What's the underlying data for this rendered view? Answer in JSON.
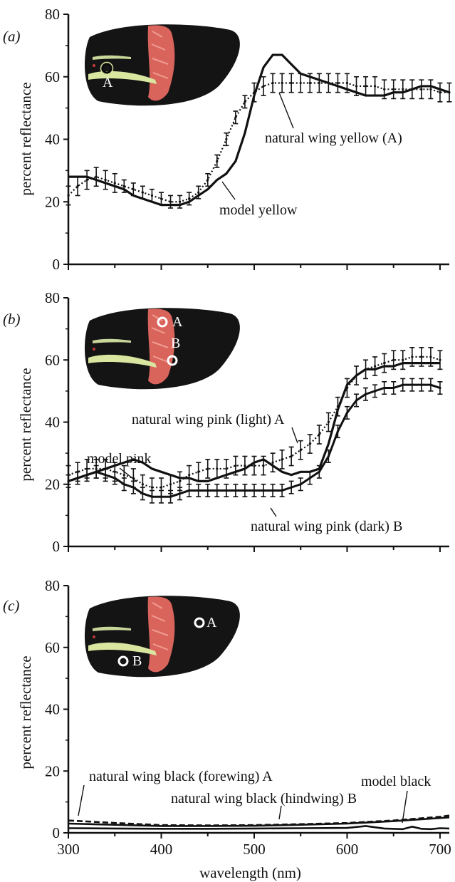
{
  "chart_data": [
    {
      "panel": "(a)",
      "type": "line",
      "ylabel": "percent reflectance",
      "ylim": [
        0,
        80
      ],
      "yticks": [
        "0",
        "20",
        "40",
        "60",
        "80"
      ],
      "xlim": [
        300,
        710
      ],
      "series": [
        {
          "name": "natural wing yellow (A)",
          "style": "dotted-errorbars",
          "x": [
            300,
            310,
            320,
            330,
            340,
            350,
            360,
            370,
            380,
            390,
            400,
            410,
            420,
            430,
            440,
            450,
            460,
            470,
            480,
            490,
            500,
            510,
            520,
            530,
            540,
            550,
            560,
            570,
            580,
            590,
            600,
            610,
            620,
            630,
            640,
            650,
            660,
            670,
            680,
            690,
            700,
            710
          ],
          "y": [
            22,
            25,
            27,
            28,
            27,
            26,
            25,
            24,
            23,
            22,
            21,
            20,
            20,
            21,
            23,
            27,
            33,
            40,
            47,
            52,
            55,
            57,
            58,
            58,
            58,
            58,
            58,
            58,
            58,
            58,
            58,
            57,
            57,
            57,
            56,
            56,
            56,
            56,
            56,
            56,
            55,
            55
          ],
          "err": [
            3,
            3,
            3,
            3,
            3,
            3,
            2,
            2,
            2,
            2,
            2,
            2,
            2,
            2,
            2,
            2,
            2,
            2,
            2,
            2,
            3,
            3,
            3,
            3,
            3,
            3,
            3,
            3,
            3,
            3,
            3,
            3,
            3,
            3,
            3,
            3,
            3,
            3,
            3,
            3,
            3,
            3
          ]
        },
        {
          "name": "model yellow",
          "style": "solid",
          "x": [
            300,
            310,
            320,
            330,
            340,
            350,
            360,
            370,
            380,
            390,
            400,
            410,
            420,
            430,
            440,
            450,
            460,
            470,
            480,
            490,
            500,
            510,
            520,
            530,
            540,
            550,
            560,
            570,
            580,
            590,
            600,
            610,
            620,
            630,
            640,
            650,
            660,
            670,
            680,
            690,
            700,
            710
          ],
          "y": [
            28,
            28,
            28,
            27,
            26,
            25,
            24,
            22,
            21,
            20,
            19,
            19,
            19,
            20,
            22,
            24,
            27,
            29,
            33,
            42,
            54,
            63,
            67,
            67,
            64,
            61,
            60,
            59,
            58,
            57,
            56,
            55,
            54,
            54,
            54,
            55,
            55,
            56,
            57,
            57,
            56,
            55
          ]
        }
      ],
      "annotations": [
        "natural wing yellow (A)",
        "model yellow"
      ],
      "inset_marker": "A"
    },
    {
      "panel": "(b)",
      "type": "line",
      "ylabel": "percent reflectance",
      "ylim": [
        0,
        80
      ],
      "yticks": [
        "0",
        "20",
        "40",
        "60",
        "80"
      ],
      "xlim": [
        300,
        710
      ],
      "series": [
        {
          "name": "natural wing pink (light) A",
          "style": "dotted-errorbars",
          "x": [
            300,
            310,
            320,
            330,
            340,
            350,
            360,
            370,
            380,
            390,
            400,
            410,
            420,
            430,
            440,
            450,
            460,
            470,
            480,
            490,
            500,
            510,
            520,
            530,
            540,
            550,
            560,
            570,
            580,
            590,
            600,
            610,
            620,
            630,
            640,
            650,
            660,
            670,
            680,
            690,
            700
          ],
          "y": [
            23,
            24,
            25,
            25,
            25,
            24,
            23,
            22,
            20,
            19,
            19,
            20,
            21,
            23,
            24,
            25,
            25,
            25,
            26,
            26,
            26,
            26,
            27,
            28,
            29,
            31,
            33,
            36,
            40,
            45,
            51,
            55,
            57,
            58,
            59,
            60,
            60,
            61,
            61,
            61,
            60
          ],
          "err": [
            3,
            3,
            3,
            3,
            3,
            3,
            3,
            3,
            3,
            3,
            3,
            3,
            3,
            3,
            3,
            3,
            3,
            3,
            3,
            3,
            3,
            3,
            3,
            3,
            3,
            3,
            3,
            3,
            3,
            3,
            3,
            3,
            3,
            3,
            3,
            3,
            3,
            3,
            3,
            3,
            3
          ]
        },
        {
          "name": "natural wing pink (dark) B",
          "style": "solid-errorbars",
          "x": [
            300,
            310,
            320,
            330,
            340,
            350,
            360,
            370,
            380,
            390,
            400,
            410,
            420,
            430,
            440,
            450,
            460,
            470,
            480,
            490,
            500,
            510,
            520,
            530,
            540,
            550,
            560,
            570,
            580,
            590,
            600,
            610,
            620,
            630,
            640,
            650,
            660,
            670,
            680,
            690,
            700
          ],
          "y": [
            21,
            22,
            23,
            24,
            23,
            22,
            20,
            19,
            17,
            16,
            16,
            16,
            17,
            18,
            18,
            18,
            18,
            18,
            18,
            18,
            18,
            18,
            18,
            18,
            19,
            20,
            22,
            24,
            29,
            37,
            43,
            47,
            49,
            50,
            51,
            51,
            52,
            52,
            52,
            52,
            51
          ],
          "err": [
            2,
            2,
            2,
            2,
            2,
            2,
            2,
            2,
            2,
            2,
            2,
            2,
            2,
            2,
            2,
            2,
            2,
            2,
            2,
            2,
            2,
            2,
            2,
            2,
            2,
            2,
            2,
            2,
            2,
            2,
            2,
            2,
            2,
            2,
            2,
            2,
            2,
            2,
            2,
            2,
            2
          ]
        },
        {
          "name": "model pink",
          "style": "solid",
          "x": [
            300,
            310,
            320,
            330,
            340,
            350,
            360,
            370,
            380,
            390,
            400,
            410,
            420,
            430,
            440,
            450,
            460,
            470,
            480,
            490,
            500,
            510,
            520,
            530,
            540,
            550,
            560,
            570,
            580,
            590,
            600,
            610,
            620,
            630,
            640,
            650,
            660,
            670,
            680,
            690,
            700
          ],
          "y": [
            21,
            22,
            23,
            24,
            25,
            26,
            27,
            28,
            27,
            25,
            24,
            23,
            22,
            22,
            21,
            21,
            22,
            23,
            24,
            25,
            27,
            28,
            26,
            24,
            23,
            24,
            24,
            25,
            33,
            44,
            52,
            55,
            57,
            57,
            58,
            58,
            59,
            59,
            59,
            59,
            59
          ]
        }
      ],
      "annotations": [
        "natural wing pink (light) A",
        "model pink",
        "natural wing pink (dark) B"
      ],
      "inset_markers": [
        "A",
        "B"
      ]
    },
    {
      "panel": "(c)",
      "type": "line",
      "ylabel": "percent reflectance",
      "xlabel": "wavelength (nm)",
      "ylim": [
        0,
        80
      ],
      "yticks": [
        "0",
        "20",
        "40",
        "60",
        "80"
      ],
      "xlim": [
        300,
        710
      ],
      "xticks": [
        "300",
        "400",
        "500",
        "600",
        "700"
      ],
      "series": [
        {
          "name": "natural wing black (forewing) A",
          "style": "dashed",
          "x": [
            300,
            350,
            400,
            450,
            500,
            550,
            600,
            650,
            700,
            710
          ],
          "y": [
            4,
            3.2,
            2.5,
            2.4,
            2.5,
            2.8,
            3.2,
            4,
            5.2,
            5.6
          ]
        },
        {
          "name": "natural wing black (hindwing) B",
          "style": "solid",
          "x": [
            300,
            350,
            400,
            450,
            500,
            550,
            600,
            650,
            700,
            710
          ],
          "y": [
            3,
            2.6,
            2.2,
            2.2,
            2.3,
            2.6,
            3,
            3.8,
            4.8,
            5
          ]
        },
        {
          "name": "model black",
          "style": "solid",
          "x": [
            300,
            350,
            400,
            450,
            500,
            550,
            600,
            620,
            640,
            660,
            670,
            680,
            690,
            700,
            710
          ],
          "y": [
            1.5,
            1.4,
            1.3,
            1.3,
            1.4,
            1.5,
            1.6,
            2.2,
            1.4,
            1.2,
            2,
            1.3,
            1.2,
            1.5,
            1.4
          ]
        }
      ],
      "annotations": [
        "natural wing black (forewing) A",
        "natural wing black (hindwing) B",
        "model black"
      ],
      "inset_markers": [
        "A",
        "B"
      ]
    }
  ]
}
